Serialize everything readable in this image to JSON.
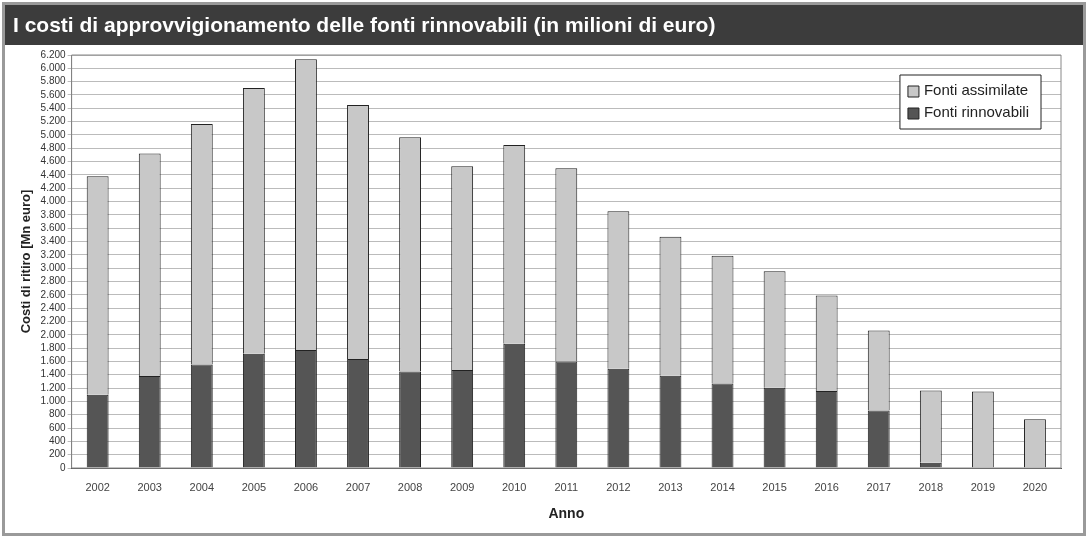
{
  "chart_data": {
    "type": "bar",
    "title": "I costi di approvvigionamento delle fonti rinnovabili (in milioni di euro)",
    "xlabel": "Anno",
    "ylabel": "Costi di ritiro [Mn euro]",
    "categories": [
      "2002",
      "2003",
      "2004",
      "2005",
      "2006",
      "2007",
      "2008",
      "2009",
      "2010",
      "2011",
      "2012",
      "2013",
      "2014",
      "2015",
      "2016",
      "2017",
      "2018",
      "2019",
      "2020"
    ],
    "stacked": true,
    "series": [
      {
        "name": "Fonti rinnovabili",
        "color": "#555555",
        "values": [
          1100,
          1380,
          1555,
          1715,
          1770,
          1635,
          1450,
          1470,
          1865,
          1600,
          1490,
          1385,
          1270,
          1205,
          1155,
          865,
          80,
          0,
          0
        ]
      },
      {
        "name": "Fonti assimilate",
        "color": "#c8c8c8",
        "values": [
          3280,
          3340,
          3610,
          3990,
          4365,
          3815,
          3515,
          3060,
          2985,
          2900,
          2365,
          2085,
          1915,
          1750,
          1435,
          1200,
          1085,
          1150,
          730
        ]
      }
    ],
    "ylim": [
      0,
      6200
    ],
    "yticks": [
      0,
      200,
      400,
      600,
      800,
      {
        "value": 1000,
        "label": "1.000"
      },
      {
        "value": 1200,
        "label": "1.200"
      },
      {
        "value": 1400,
        "label": "1.400"
      },
      {
        "value": 1600,
        "label": "1.600"
      },
      {
        "value": 1800,
        "label": "1.800"
      },
      {
        "value": 2000,
        "label": "2.000"
      },
      {
        "value": 2200,
        "label": "2.200"
      },
      {
        "value": 2400,
        "label": "2.400"
      },
      {
        "value": 2600,
        "label": "2.600"
      },
      {
        "value": 2800,
        "label": "2.800"
      },
      {
        "value": 3000,
        "label": "3.000"
      },
      {
        "value": 3200,
        "label": "3.200"
      },
      {
        "value": 3400,
        "label": "3.400"
      },
      {
        "value": 3600,
        "label": "3.600"
      },
      {
        "value": 3800,
        "label": "3.800"
      },
      {
        "value": 4000,
        "label": "4.000"
      },
      {
        "value": 4200,
        "label": "4.200"
      },
      {
        "value": 4400,
        "label": "4.400"
      },
      {
        "value": 4600,
        "label": "4.600"
      },
      {
        "value": 4800,
        "label": "4.800"
      },
      {
        "value": 5000,
        "label": "5.000"
      },
      {
        "value": 5200,
        "label": "5.200"
      },
      {
        "value": 5400,
        "label": "5.400"
      },
      {
        "value": 5600,
        "label": "5.600"
      },
      {
        "value": 5800,
        "label": "5.800"
      },
      {
        "value": 6000,
        "label": "6.000"
      },
      {
        "value": 6200,
        "label": "6.200"
      }
    ],
    "grid": "y",
    "legend": "top right"
  }
}
